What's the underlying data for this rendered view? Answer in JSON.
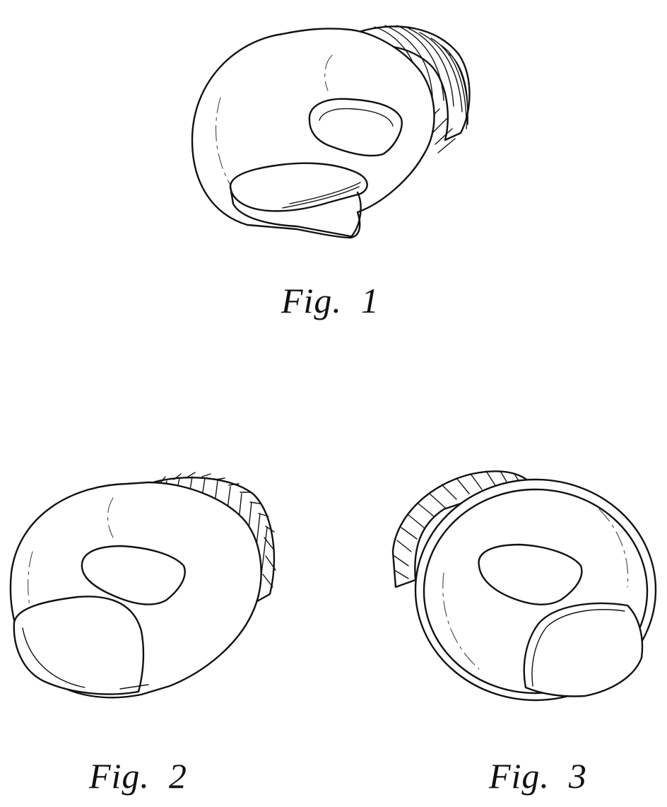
{
  "figures": [
    {
      "label": "Fig.  1"
    },
    {
      "label": "Fig.  2"
    },
    {
      "label": "Fig.  3"
    }
  ]
}
